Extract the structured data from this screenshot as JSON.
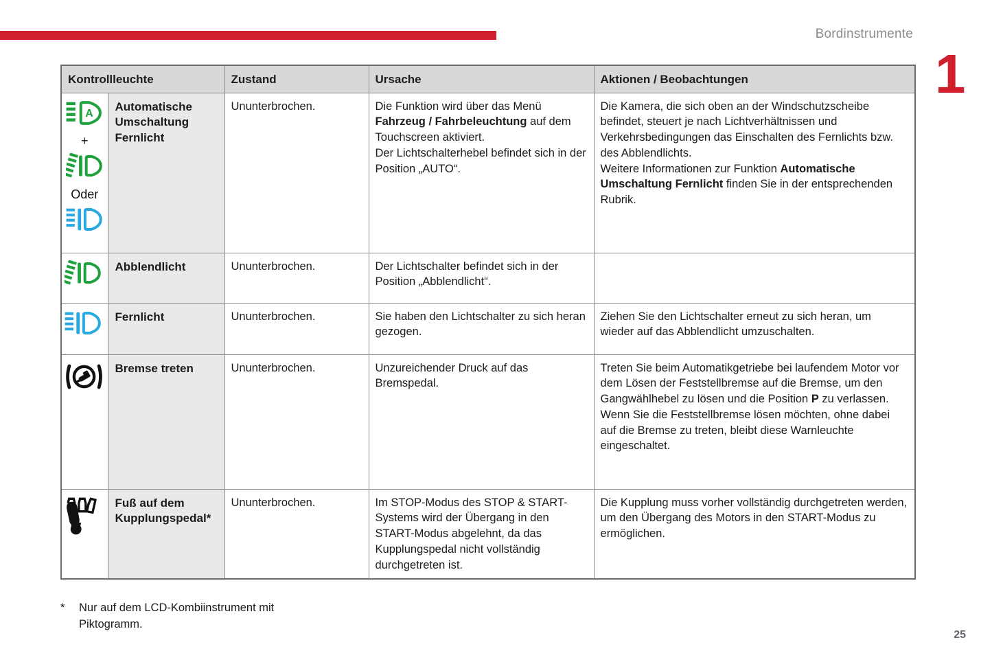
{
  "colors": {
    "accent_red": "#d0202d",
    "icon_green": "#1fa23e",
    "icon_blue": "#29a9e1"
  },
  "header": {
    "title": "Bordinstrumente",
    "chapter_number": "1"
  },
  "table": {
    "headers": [
      "Kontrollleuchte",
      "Zustand",
      "Ursache",
      "Aktionen / Beobachtungen"
    ],
    "rows": [
      {
        "icons": [
          "automatic-main-beam-icon",
          "dipped-beam-icon",
          "main-beam-icon"
        ],
        "icon_labels": [
          "+",
          "Oder"
        ],
        "name": "Automatische Umschaltung Fernlicht",
        "zustand": "Ununterbrochen.",
        "ursache": [
          {
            "t": "Die Funktion wird über das Menü "
          },
          {
            "t": "Fahrzeug / Fahrbeleuchtung",
            "b": true
          },
          {
            "t": " auf dem Touchscreen aktiviert.\nDer Lichtschalterhebel befindet sich in der Position „AUTO“."
          }
        ],
        "aktionen": [
          {
            "t": "Die Kamera, die sich oben an der Windschutzscheibe befindet, steuert je nach Lichtverhältnissen und Verkehrsbedingungen das Einschalten des Fernlichts bzw. des Abblendlichts.\nWeitere Informationen zur Funktion "
          },
          {
            "t": "Automatische Umschaltung Fernlicht",
            "b": true
          },
          {
            "t": " finden Sie in der entsprechenden Rubrik."
          }
        ]
      },
      {
        "icons": [
          "dipped-beam-icon"
        ],
        "name": "Abblendlicht",
        "zustand": "Ununterbrochen.",
        "ursache": [
          {
            "t": "Der Lichtschalter befindet sich in der Position „Abblendlicht“."
          }
        ],
        "aktionen": [
          {
            "t": ""
          }
        ]
      },
      {
        "icons": [
          "main-beam-icon"
        ],
        "name": "Fernlicht",
        "zustand": "Ununterbrochen.",
        "ursache": [
          {
            "t": "Sie haben den Lichtschalter zu sich heran gezogen."
          }
        ],
        "aktionen": [
          {
            "t": "Ziehen Sie den Lichtschalter erneut zu sich heran, um wieder auf das Abblendlicht umzuschalten."
          }
        ]
      },
      {
        "icons": [
          "press-brake-pedal-icon"
        ],
        "name": "Bremse treten",
        "zustand": "Ununterbrochen.",
        "ursache": [
          {
            "t": "Unzureichender Druck auf das Bremspedal."
          }
        ],
        "aktionen": [
          {
            "t": "Treten Sie beim Automatikgetriebe bei laufendem Motor vor dem Lösen der Feststellbremse auf die Bremse, um den Gangwählhebel zu lösen und die Position "
          },
          {
            "t": "P",
            "b": true
          },
          {
            "t": " zu verlassen.\nWenn Sie die Feststellbremse lösen möchten, ohne dabei auf die Bremse zu treten, bleibt diese Warnleuchte eingeschaltet."
          }
        ]
      },
      {
        "icons": [
          "foot-on-clutch-pedal-icon"
        ],
        "name": "Fuß auf dem Kupplungspedal*",
        "zustand": "Ununterbrochen.",
        "ursache": [
          {
            "t": "Im STOP-Modus des STOP & START-Systems wird der Übergang in den START-Modus abgelehnt, da das Kupplungspedal nicht vollständig durchgetreten ist."
          }
        ],
        "aktionen": [
          {
            "t": "Die Kupplung muss vorher vollständig durchgetreten werden, um den Übergang des Motors in den START-Modus zu ermöglichen."
          }
        ]
      }
    ]
  },
  "footnote": {
    "marker": "*",
    "text": "Nur auf dem LCD-Kombiinstrument mit Piktogramm."
  },
  "page_number": "25"
}
